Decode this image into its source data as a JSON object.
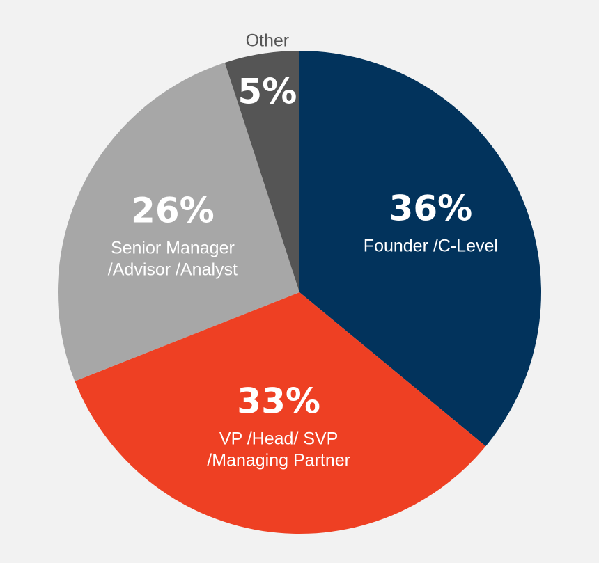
{
  "chart_data": {
    "type": "pie",
    "slices": [
      {
        "percent_label": "36%",
        "label_lines": [
          "Founder /C-Level"
        ],
        "value": 36,
        "color": "#02335c"
      },
      {
        "percent_label": "33%",
        "label_lines": [
          "VP /Head/ SVP",
          "/Managing Partner"
        ],
        "value": 33,
        "color": "#ee4023"
      },
      {
        "percent_label": "26%",
        "label_lines": [
          "Senior Manager",
          "/Advisor /Analyst"
        ],
        "value": 26,
        "color": "#a7a7a7"
      },
      {
        "percent_label": "5%",
        "outer_label": "Other",
        "value": 5,
        "color": "#555555"
      }
    ],
    "start_angle": "12 o'clock",
    "direction": "clockwise",
    "legend": "none"
  }
}
